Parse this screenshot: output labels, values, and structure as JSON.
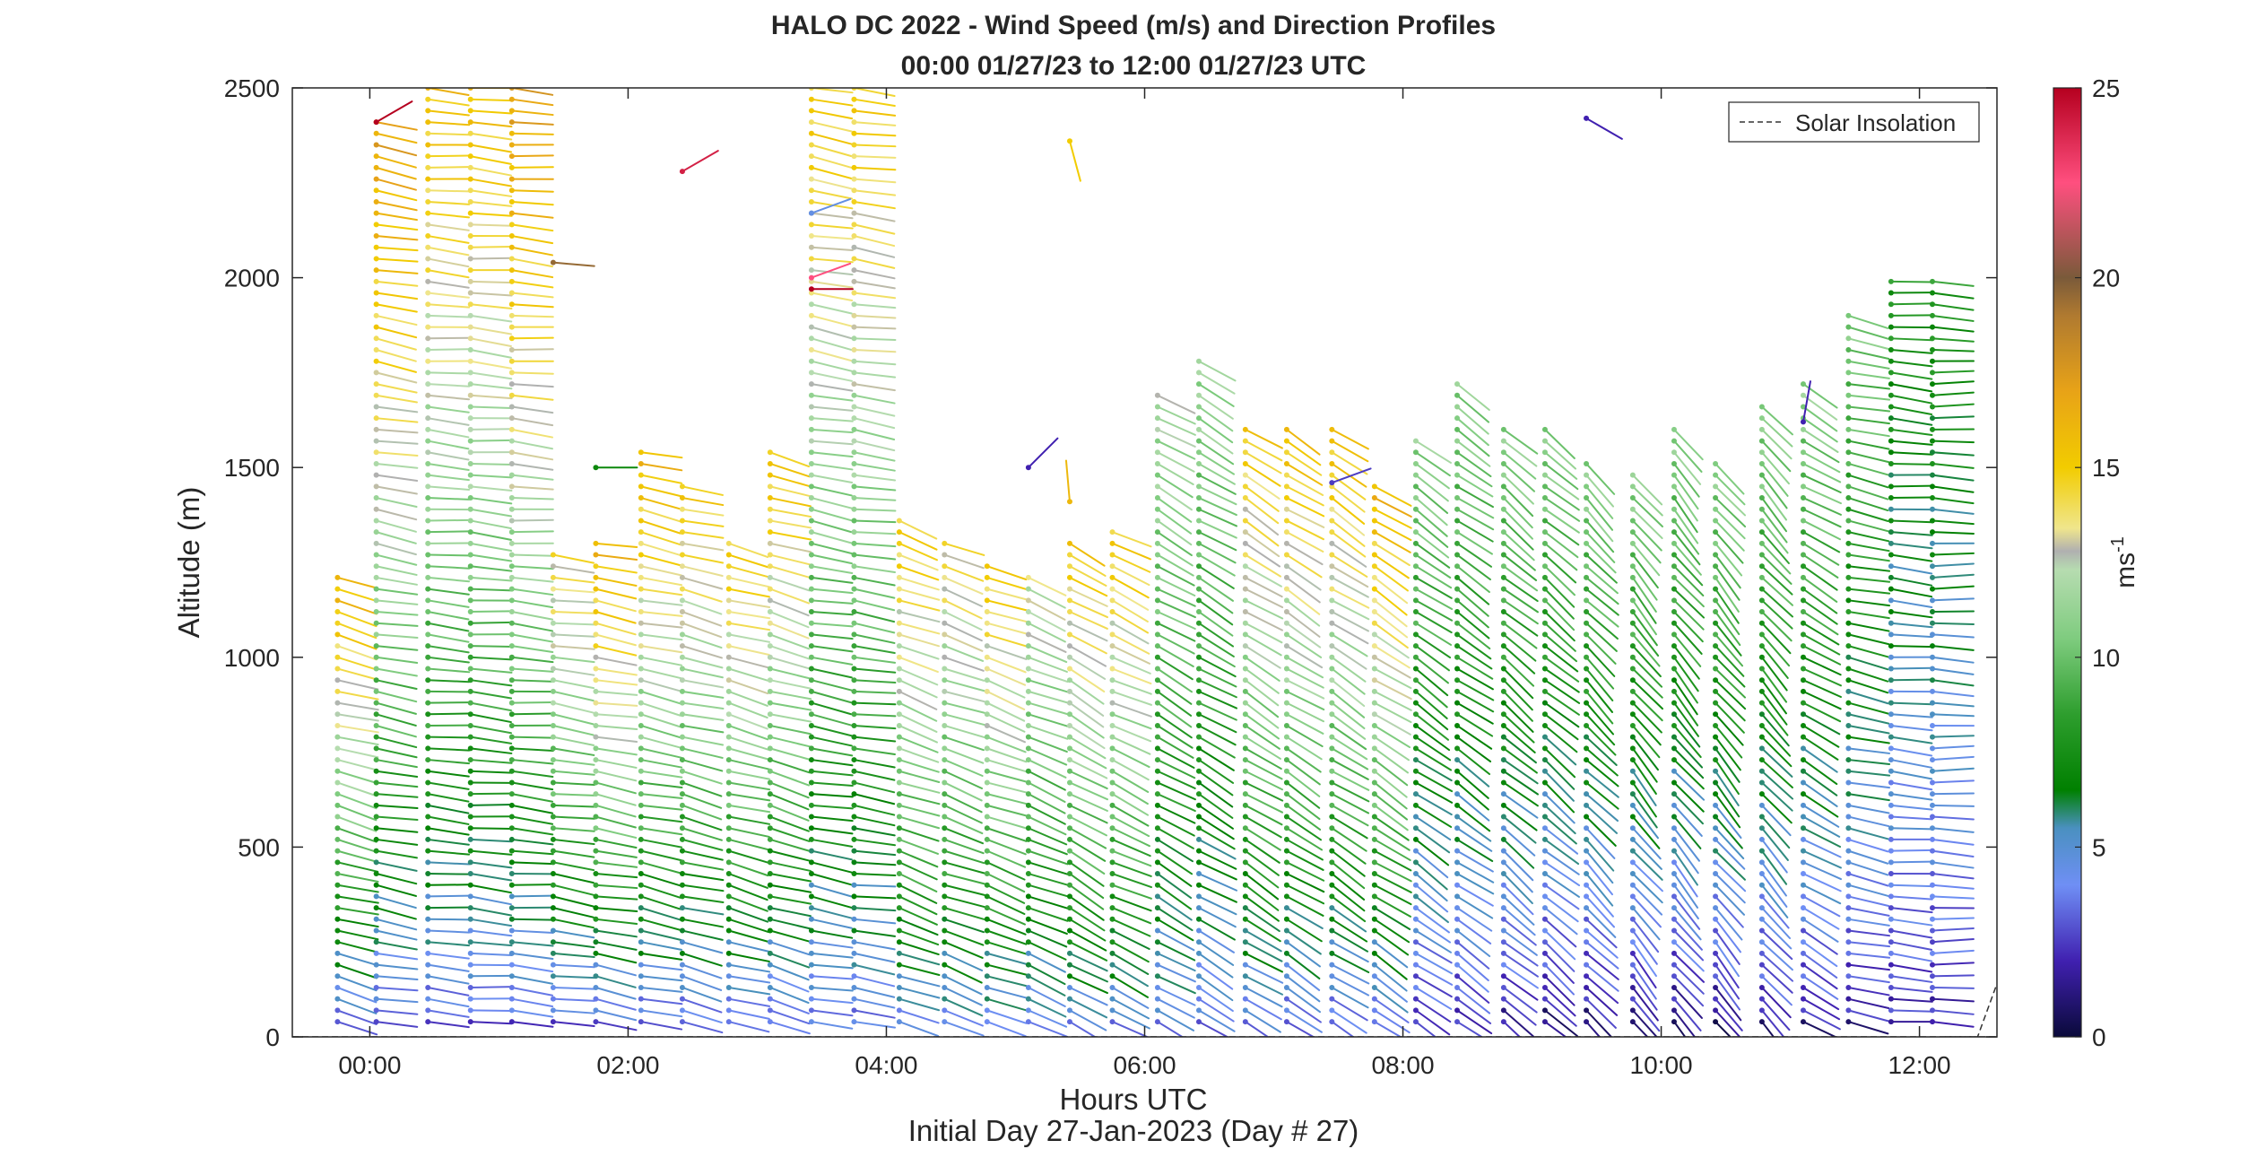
{
  "chart_data": {
    "type": "scatter",
    "title": "HALO DC 2022 - Wind Speed (m/s) and Direction Profiles",
    "subtitle": "00:00 01/27/23 to 12:00 01/27/23  UTC",
    "xlabel": "Hours UTC",
    "ylabel": "Altitude (m)",
    "footer": "Initial Day 27-Jan-2023 (Day # 27)",
    "xlim": [
      -0.6,
      12.6
    ],
    "ylim": [
      0,
      2500
    ],
    "x_ticks": [
      0,
      2,
      4,
      6,
      8,
      10,
      12
    ],
    "x_tick_labels": [
      "00:00",
      "02:00",
      "04:00",
      "06:00",
      "08:00",
      "10:00",
      "12:00"
    ],
    "y_ticks": [
      0,
      500,
      1000,
      1500,
      2000,
      2500
    ],
    "y_tick_labels": [
      "0",
      "500",
      "1000",
      "1500",
      "2000",
      "2500"
    ],
    "colorbar": {
      "label": "ms",
      "label_superscript": "-1",
      "range": [
        0,
        25
      ],
      "ticks": [
        0,
        5,
        10,
        15,
        20,
        25
      ],
      "tick_labels": [
        "0",
        "5",
        "10",
        "15",
        "20",
        "25"
      ],
      "stops": [
        {
          "v": 0,
          "color": "#0a0a3a"
        },
        {
          "v": 2,
          "color": "#4020b0"
        },
        {
          "v": 4,
          "color": "#6f8ff5"
        },
        {
          "v": 5.5,
          "color": "#4a90c0"
        },
        {
          "v": 6.5,
          "color": "#008000"
        },
        {
          "v": 8.5,
          "color": "#2e9e2e"
        },
        {
          "v": 10.5,
          "color": "#7fcc7f"
        },
        {
          "v": 12.3,
          "color": "#b6dcb0"
        },
        {
          "v": 12.8,
          "color": "#b0b0b0"
        },
        {
          "v": 13.4,
          "color": "#f0e68c"
        },
        {
          "v": 15,
          "color": "#f2cc00"
        },
        {
          "v": 17,
          "color": "#e8a317"
        },
        {
          "v": 19,
          "color": "#b07a30"
        },
        {
          "v": 20,
          "color": "#7a5a3a"
        },
        {
          "v": 22.5,
          "color": "#ff4f7f"
        },
        {
          "v": 25,
          "color": "#b5001f"
        }
      ]
    },
    "legend": {
      "entries": [
        "Solar Insolation"
      ],
      "placement": "top-right"
    },
    "grid": false,
    "wind_profiles": [
      {
        "time": -0.25,
        "zmin": 40,
        "zmax": 1220,
        "spd_lo": 3,
        "spd_hi": 16,
        "dir": 285
      },
      {
        "time": 0.05,
        "zmin": 40,
        "zmax": 2420,
        "spd_lo": 3,
        "spd_hi": 17,
        "dir": 280
      },
      {
        "time": 0.45,
        "zmin": 40,
        "zmax": 2500,
        "spd_lo": 3,
        "spd_hi": 15.5,
        "dir": 275
      },
      {
        "time": 0.78,
        "zmin": 40,
        "zmax": 2500,
        "spd_lo": 3,
        "spd_hi": 15.5,
        "dir": 275
      },
      {
        "time": 1.1,
        "zmin": 40,
        "zmax": 2500,
        "spd_lo": 3,
        "spd_hi": 17,
        "dir": 275
      },
      {
        "time": 1.42,
        "zmin": 40,
        "zmax": 1270,
        "spd_lo": 3,
        "spd_hi": 14,
        "dir": 278
      },
      {
        "time": 1.75,
        "zmin": 40,
        "zmax": 1300,
        "spd_lo": 3,
        "spd_hi": 16,
        "dir": 280
      },
      {
        "time": 2.1,
        "zmin": 40,
        "zmax": 1560,
        "spd_lo": 3,
        "spd_hi": 16,
        "dir": 282
      },
      {
        "time": 2.42,
        "zmin": 40,
        "zmax": 1460,
        "spd_lo": 3,
        "spd_hi": 15,
        "dir": 284
      },
      {
        "time": 2.78,
        "zmin": 40,
        "zmax": 1320,
        "spd_lo": 3,
        "spd_hi": 15,
        "dir": 285
      },
      {
        "time": 3.1,
        "zmin": 40,
        "zmax": 1560,
        "spd_lo": 3,
        "spd_hi": 15.5,
        "dir": 286
      },
      {
        "time": 3.42,
        "zmin": 40,
        "zmax": 2500,
        "spd_lo": 3.5,
        "spd_hi": 15,
        "dir": 280
      },
      {
        "time": 3.75,
        "zmin": 40,
        "zmax": 2500,
        "spd_lo": 3.5,
        "spd_hi": 15,
        "dir": 278
      },
      {
        "time": 4.1,
        "zmin": 40,
        "zmax": 1370,
        "spd_lo": 4,
        "spd_hi": 15,
        "dir": 290
      },
      {
        "time": 4.45,
        "zmin": 40,
        "zmax": 1300,
        "spd_lo": 4,
        "spd_hi": 14,
        "dir": 290
      },
      {
        "time": 4.78,
        "zmin": 40,
        "zmax": 1260,
        "spd_lo": 4,
        "spd_hi": 15,
        "dir": 290
      },
      {
        "time": 5.1,
        "zmin": 40,
        "zmax": 1210,
        "spd_lo": 4,
        "spd_hi": 12.8,
        "dir": 292
      },
      {
        "time": 5.42,
        "zmin": 40,
        "zmax": 1320,
        "spd_lo": 4,
        "spd_hi": 15,
        "dir": 300
      },
      {
        "time": 5.75,
        "zmin": 40,
        "zmax": 1330,
        "spd_lo": 4,
        "spd_hi": 15,
        "dir": 295
      },
      {
        "time": 6.1,
        "zmin": 40,
        "zmax": 1700,
        "spd_lo": 4,
        "spd_hi": 12,
        "dir": 300
      },
      {
        "time": 6.42,
        "zmin": 40,
        "zmax": 1780,
        "spd_lo": 3.5,
        "spd_hi": 11.5,
        "dir": 300
      },
      {
        "time": 6.78,
        "zmin": 40,
        "zmax": 1620,
        "spd_lo": 3.5,
        "spd_hi": 15,
        "dir": 302
      },
      {
        "time": 7.1,
        "zmin": 40,
        "zmax": 1620,
        "spd_lo": 3,
        "spd_hi": 15.5,
        "dir": 302
      },
      {
        "time": 7.45,
        "zmin": 40,
        "zmax": 1610,
        "spd_lo": 3,
        "spd_hi": 15.5,
        "dir": 303
      },
      {
        "time": 7.78,
        "zmin": 40,
        "zmax": 1450,
        "spd_lo": 3,
        "spd_hi": 16,
        "dir": 303
      },
      {
        "time": 8.1,
        "zmin": 40,
        "zmax": 1580,
        "spd_lo": 2,
        "spd_hi": 11,
        "dir": 305
      },
      {
        "time": 8.42,
        "zmin": 40,
        "zmax": 1740,
        "spd_lo": 2,
        "spd_hi": 11,
        "dir": 305
      },
      {
        "time": 8.78,
        "zmin": 40,
        "zmax": 1620,
        "spd_lo": 1.5,
        "spd_hi": 11,
        "dir": 310
      },
      {
        "time": 9.1,
        "zmin": 40,
        "zmax": 1620,
        "spd_lo": 1,
        "spd_hi": 11,
        "dir": 310
      },
      {
        "time": 9.42,
        "zmin": 40,
        "zmax": 1520,
        "spd_lo": 1,
        "spd_hi": 11,
        "dir": 315
      },
      {
        "time": 9.78,
        "zmin": 40,
        "zmax": 1480,
        "spd_lo": 1,
        "spd_hi": 11,
        "dir": 320
      },
      {
        "time": 10.1,
        "zmin": 40,
        "zmax": 1620,
        "spd_lo": 1,
        "spd_hi": 11,
        "dir": 320
      },
      {
        "time": 10.42,
        "zmin": 40,
        "zmax": 1520,
        "spd_lo": 1,
        "spd_hi": 11,
        "dir": 320
      },
      {
        "time": 10.78,
        "zmin": 40,
        "zmax": 1660,
        "spd_lo": 1.5,
        "spd_hi": 11,
        "dir": 318
      },
      {
        "time": 11.1,
        "zmin": 40,
        "zmax": 1720,
        "spd_lo": 1.5,
        "spd_hi": 11,
        "dir": 300
      },
      {
        "time": 11.45,
        "zmin": 40,
        "zmax": 1910,
        "spd_lo": 1.5,
        "spd_hi": 10.5,
        "dir": 282
      },
      {
        "time": 11.78,
        "zmin": 40,
        "zmax": 1990,
        "spd_lo": 2,
        "spd_hi": 8,
        "dir": 275
      },
      {
        "time": 12.1,
        "zmin": 40,
        "zmax": 2010,
        "spd_lo": 2,
        "spd_hi": 8,
        "dir": 272
      }
    ],
    "extra_barbs": [
      {
        "time": 0.05,
        "alt": 2410,
        "spd": 25,
        "dir": 240
      },
      {
        "time": 2.42,
        "alt": 2280,
        "spd": 24,
        "dir": 240
      },
      {
        "time": 3.42,
        "alt": 2170,
        "spd": 4.5,
        "dir": 250
      },
      {
        "time": 3.42,
        "alt": 2000,
        "spd": 22.5,
        "dir": 250
      },
      {
        "time": 3.42,
        "alt": 1970,
        "spd": 25,
        "dir": 270
      },
      {
        "time": 5.1,
        "alt": 1500,
        "spd": 2,
        "dir": 225
      },
      {
        "time": 5.42,
        "alt": 1410,
        "spd": 16,
        "dir": 175
      },
      {
        "time": 5.42,
        "alt": 2360,
        "spd": 15,
        "dir": 345
      },
      {
        "time": 7.45,
        "alt": 1460,
        "spd": 2.5,
        "dir": 250
      },
      {
        "time": 9.42,
        "alt": 2420,
        "spd": 2,
        "dir": 300
      },
      {
        "time": 11.1,
        "alt": 1620,
        "spd": 2,
        "dir": 190
      },
      {
        "time": 1.42,
        "alt": 2040,
        "spd": 19.5,
        "dir": 275
      },
      {
        "time": 1.75,
        "alt": 1500,
        "spd": 7,
        "dir": 270
      }
    ],
    "solar_insolation": {
      "x": [
        12.2,
        12.45,
        12.6
      ],
      "y": [
        0,
        0,
        140
      ]
    }
  }
}
